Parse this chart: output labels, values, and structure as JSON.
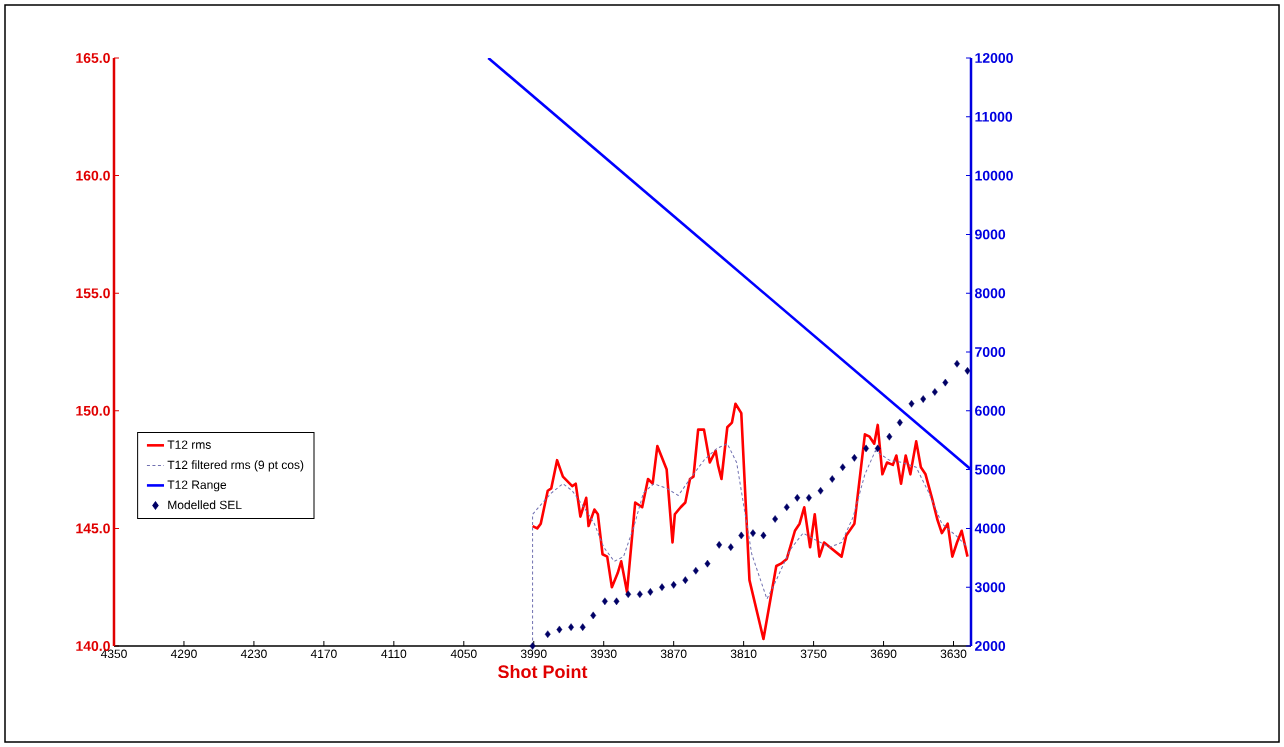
{
  "chart_data": {
    "type": "line",
    "xlabel": "Shot Point",
    "xlim": [
      4350,
      3615
    ],
    "xticks": [
      4350,
      4290,
      4230,
      4170,
      4110,
      4050,
      3990,
      3930,
      3870,
      3810,
      3750,
      3690,
      3630
    ],
    "ylim": [
      140,
      165
    ],
    "yticks": [
      {
        "value": 140,
        "label": "140.0"
      },
      {
        "value": 145,
        "label": "145.0"
      },
      {
        "value": 150,
        "label": "150.0"
      },
      {
        "value": 155,
        "label": "155.0"
      },
      {
        "value": 160,
        "label": "160.0"
      },
      {
        "value": 165,
        "label": "165.0"
      }
    ],
    "y2lim": [
      2000,
      12000
    ],
    "y2ticks": [
      2000,
      3000,
      4000,
      5000,
      6000,
      7000,
      8000,
      9000,
      10000,
      11000,
      12000
    ],
    "legend": "left",
    "series": [
      {
        "name": "T12 rms",
        "color": "#ff0000",
        "line_style": "solid",
        "marker": "none",
        "x": [
          3991,
          3987,
          3984,
          3978,
          3975,
          3970,
          3965,
          3961,
          3957,
          3954,
          3950,
          3945,
          3943,
          3938,
          3935,
          3931,
          3927,
          3923,
          3918,
          3915,
          3910,
          3903,
          3897,
          3892,
          3888,
          3884,
          3876,
          3871,
          3869,
          3864,
          3860,
          3856,
          3853,
          3849,
          3844,
          3839,
          3834,
          3832,
          3829,
          3824,
          3820,
          3817,
          3812,
          3805,
          3793,
          3782,
          3778,
          3773,
          3766,
          3762,
          3758,
          3753,
          3749,
          3745,
          3741,
          3736,
          3726,
          3722,
          3715,
          3706,
          3702,
          3698,
          3695,
          3691,
          3687,
          3682,
          3679,
          3675,
          3671,
          3667,
          3662,
          3658,
          3654,
          3648,
          3644,
          3640,
          3635,
          3631,
          3627,
          3623,
          3618
        ],
        "values": [
          145.1,
          145.0,
          145.2,
          146.6,
          146.7,
          147.9,
          147.2,
          147.0,
          146.8,
          146.9,
          145.5,
          146.3,
          145.1,
          145.8,
          145.6,
          143.9,
          143.8,
          142.5,
          143.1,
          143.6,
          142.3,
          146.1,
          145.9,
          147.1,
          146.9,
          148.5,
          147.5,
          144.4,
          145.6,
          145.9,
          146.1,
          147.1,
          147.2,
          149.2,
          149.2,
          147.8,
          148.3,
          147.7,
          147.1,
          149.3,
          149.5,
          150.3,
          149.9,
          142.8,
          140.3,
          143.4,
          143.5,
          143.7,
          144.9,
          145.2,
          145.9,
          144.2,
          145.6,
          143.8,
          144.4,
          144.2,
          143.8,
          144.7,
          145.2,
          149.0,
          148.9,
          148.6,
          149.4,
          147.3,
          147.8,
          147.7,
          148.1,
          146.9,
          148.1,
          147.3,
          148.7,
          147.6,
          147.3,
          146.2,
          145.4,
          144.8,
          145.2,
          143.8,
          144.4,
          144.9,
          143.8
        ]
      },
      {
        "name": "T12 filtered rms (9 pt cos)",
        "color": "#7070b0",
        "line_style": "dashed",
        "marker": "none",
        "x": [
          3991,
          3991,
          3984,
          3975,
          3965,
          3957,
          3947,
          3938,
          3930,
          3921,
          3913,
          3904,
          3896,
          3887,
          3876,
          3866,
          3856,
          3844,
          3833,
          3824,
          3816,
          3803,
          3790,
          3782,
          3770,
          3759,
          3748,
          3736,
          3726,
          3716,
          3706,
          3697,
          3685,
          3674,
          3662,
          3651,
          3640,
          3628,
          3618
        ],
        "values": [
          140.0,
          145.6,
          146.0,
          146.5,
          146.9,
          146.6,
          145.9,
          145.2,
          144.2,
          143.6,
          143.8,
          145.1,
          146.5,
          146.9,
          146.7,
          146.4,
          147.1,
          147.9,
          148.4,
          148.6,
          147.8,
          143.9,
          142.0,
          142.8,
          144.1,
          144.8,
          144.5,
          144.2,
          144.4,
          145.5,
          147.3,
          148.3,
          147.9,
          147.8,
          147.6,
          146.5,
          145.2,
          144.7,
          144.2
        ]
      },
      {
        "name": "T12 Range",
        "axis": "y2",
        "color": "#0000ff",
        "line_style": "solid",
        "marker": "none",
        "x": [
          4029,
          3615
        ],
        "values": [
          12000,
          5000
        ]
      },
      {
        "name": "Modelled SEL",
        "type": "scatter",
        "color": "#000066",
        "marker": "diamond",
        "x": [
          3991,
          3978,
          3968,
          3958,
          3948,
          3939,
          3929,
          3919,
          3909,
          3899,
          3890,
          3880,
          3870,
          3860,
          3851,
          3841,
          3831,
          3821,
          3812,
          3802,
          3793,
          3783,
          3773,
          3764,
          3754,
          3744,
          3734,
          3725,
          3715,
          3705,
          3695,
          3685,
          3676,
          3666,
          3656,
          3646,
          3637,
          3627,
          3618
        ],
        "values": [
          140.0,
          140.5,
          140.7,
          140.8,
          140.8,
          141.3,
          141.9,
          141.9,
          142.2,
          142.2,
          142.3,
          142.5,
          142.6,
          142.8,
          143.2,
          143.5,
          144.3,
          144.2,
          144.7,
          144.8,
          144.7,
          145.4,
          145.9,
          146.3,
          146.3,
          146.6,
          147.1,
          147.6,
          148.0,
          148.4,
          148.4,
          148.9,
          149.5,
          150.3,
          150.5,
          150.8,
          151.2,
          152.0,
          151.7
        ]
      }
    ]
  }
}
